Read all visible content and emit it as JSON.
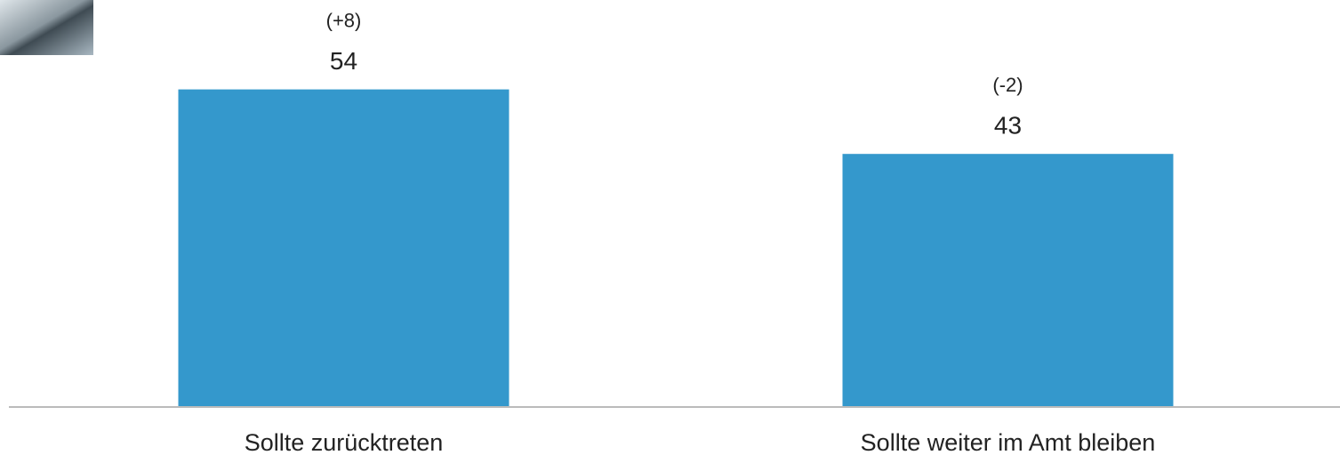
{
  "chart_data": {
    "type": "bar",
    "categories": [
      "Sollte zurücktreten",
      "Sollte weiter im Amt bleiben"
    ],
    "values": [
      54,
      43
    ],
    "annotations": [
      "(+8)",
      "(-2)"
    ],
    "color": "#3498cc"
  }
}
